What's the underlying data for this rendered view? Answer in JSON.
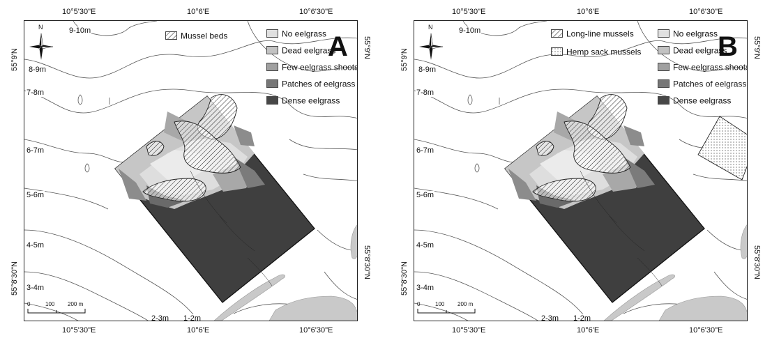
{
  "legend_colors": {
    "no_eelgrass": "#e0e0e0",
    "dead_eelgrass": "#c2c2c2",
    "few_shoots": "#a0a0a0",
    "patches": "#767676",
    "dense": "#474747"
  },
  "panels": [
    {
      "id": "A",
      "letter": "A",
      "top_ticks": [
        "10°5'30\"E",
        "10°6'E",
        "10°6'30\"E"
      ],
      "bottom_ticks": [
        "10°5'30\"E",
        "10°6'E",
        "10°6'30\"E"
      ],
      "left_ticks": [
        "55°9'N",
        "55°8'30\"N"
      ],
      "right_ticks": [
        "55°9'N",
        "55°8'30\"N"
      ],
      "depths": [
        "9-10m",
        "8-9m",
        "7-8m",
        "6-7m",
        "5-6m",
        "4-5m",
        "3-4m",
        "2-3m",
        "1-2m"
      ],
      "scale": [
        "0",
        "100",
        "200 m"
      ],
      "compass": "N",
      "mussel_legend": [
        {
          "label": "Mussel beds",
          "pattern": "hatch"
        }
      ],
      "eelgrass_legend": [
        {
          "label": "No eelgrass",
          "color": "#e0e0e0"
        },
        {
          "label": "Dead eelgrass",
          "color": "#c2c2c2"
        },
        {
          "label": "Few eelgrass shoots",
          "color": "#a0a0a0"
        },
        {
          "label": "Patches of eelgrass",
          "color": "#767676"
        },
        {
          "label": "Dense eelgrass",
          "color": "#474747"
        }
      ]
    },
    {
      "id": "B",
      "letter": "B",
      "top_ticks": [
        "10°5'30\"E",
        "10°6'E",
        "10°6'30\"E"
      ],
      "bottom_ticks": [
        "10°5'30\"E",
        "10°6'E",
        "10°6'30\"E"
      ],
      "left_ticks": [
        "55°9'N",
        "55°8'30\"N"
      ],
      "right_ticks": [
        "55°9'N",
        "55°8'30\"N"
      ],
      "depths": [
        "9-10m",
        "8-9m",
        "7-8m",
        "6-7m",
        "5-6m",
        "4-5m",
        "3-4m",
        "2-3m",
        "1-2m"
      ],
      "scale": [
        "0",
        "100",
        "200 m"
      ],
      "compass": "N",
      "mussel_legend": [
        {
          "label": "Long-line mussels",
          "pattern": "hatch"
        },
        {
          "label": "Hemp sack mussels",
          "pattern": "dots"
        }
      ],
      "eelgrass_legend": [
        {
          "label": "No eelgrass",
          "color": "#e0e0e0"
        },
        {
          "label": "Dead eelgrass",
          "color": "#c2c2c2"
        },
        {
          "label": "Few eelgrass shoots",
          "color": "#a0a0a0"
        },
        {
          "label": "Patches of eelgrass",
          "color": "#767676"
        },
        {
          "label": "Dense eelgrass",
          "color": "#474747"
        }
      ]
    }
  ]
}
